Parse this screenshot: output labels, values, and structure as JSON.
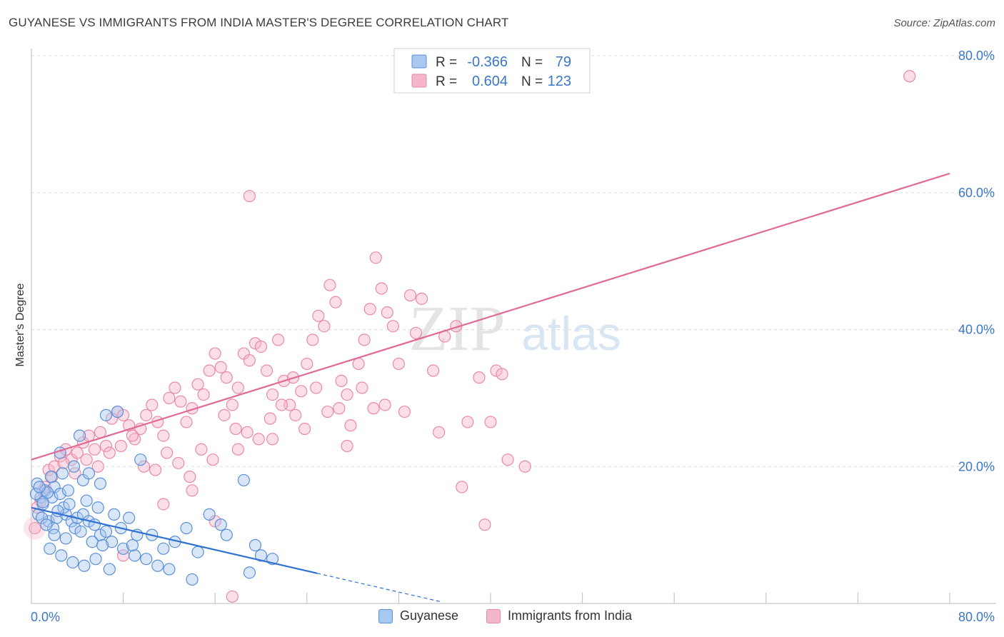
{
  "title": "GUYANESE VS IMMIGRANTS FROM INDIA MASTER'S DEGREE CORRELATION CHART",
  "source": "Source: ZipAtlas.com",
  "watermark": {
    "zip": "ZIP",
    "atlas": "atlas"
  },
  "colors": {
    "blue_fill": "#a8c8f0",
    "blue_stroke": "#5b8fd6",
    "blue_line": "#2f72d0",
    "pink_fill": "#f6b6c9",
    "pink_stroke": "#e88aa8",
    "pink_line": "#e06a95",
    "axis_text": "#3a78c8",
    "grid": "#dddddd"
  },
  "legend": {
    "r_label": "R =",
    "n_label": "N =",
    "series": [
      {
        "name": "Guyanese",
        "r": "-0.366",
        "n": "79"
      },
      {
        "name": "Immigrants from India",
        "r": "0.604",
        "n": "123"
      }
    ]
  },
  "chart_data": {
    "type": "scatter",
    "xlabel": "",
    "ylabel": "Master's Degree",
    "xlim": [
      0,
      80
    ],
    "ylim": [
      0,
      80
    ],
    "x_tick_labels": [
      "0.0%",
      "80.0%"
    ],
    "y_ticks": [
      20,
      40,
      60,
      80
    ],
    "y_tick_labels": [
      "20.0%",
      "40.0%",
      "60.0%",
      "80.0%"
    ],
    "series": [
      {
        "name": "Guyanese",
        "r": -0.366,
        "n": 79,
        "trend": {
          "x0": 0,
          "y0": 14.0,
          "x1": 24.9,
          "y1": 4.4,
          "dash_to_x": 35.6
        },
        "points": [
          [
            0.5,
            17.5
          ],
          [
            0.8,
            15.5
          ],
          [
            1.0,
            14.5
          ],
          [
            1.2,
            16.5
          ],
          [
            0.6,
            13.0
          ],
          [
            1.5,
            12.0
          ],
          [
            2.0,
            17.0
          ],
          [
            1.8,
            15.5
          ],
          [
            2.5,
            16.0
          ],
          [
            2.2,
            12.5
          ],
          [
            1.9,
            11.0
          ],
          [
            3.0,
            13.0
          ],
          [
            3.5,
            12.0
          ],
          [
            3.8,
            11.0
          ],
          [
            4.0,
            12.5
          ],
          [
            4.5,
            13.0
          ],
          [
            5.0,
            12.0
          ],
          [
            5.5,
            11.5
          ],
          [
            2.0,
            10.0
          ],
          [
            3.0,
            9.5
          ],
          [
            6.0,
            10.0
          ],
          [
            6.5,
            10.5
          ],
          [
            7.0,
            9.0
          ],
          [
            8.0,
            8.0
          ],
          [
            9.0,
            7.0
          ],
          [
            10.0,
            6.5
          ],
          [
            4.5,
            18.0
          ],
          [
            5.0,
            19.0
          ],
          [
            6.0,
            17.5
          ],
          [
            2.5,
            22.0
          ],
          [
            4.2,
            24.5
          ],
          [
            6.5,
            27.5
          ],
          [
            7.5,
            28.0
          ],
          [
            9.5,
            21.0
          ],
          [
            11.0,
            5.5
          ],
          [
            12.0,
            5.0
          ],
          [
            14.0,
            3.5
          ],
          [
            15.5,
            13.0
          ],
          [
            16.5,
            11.5
          ],
          [
            17.0,
            10.0
          ],
          [
            18.5,
            18.0
          ],
          [
            19.5,
            8.5
          ],
          [
            20.0,
            7.0
          ],
          [
            21.0,
            6.5
          ],
          [
            1.0,
            14.8
          ],
          [
            1.4,
            16.2
          ],
          [
            2.8,
            14.0
          ],
          [
            3.2,
            16.5
          ],
          [
            4.8,
            15.0
          ],
          [
            5.8,
            14.0
          ],
          [
            7.2,
            13.0
          ],
          [
            8.5,
            12.5
          ],
          [
            1.6,
            8.0
          ],
          [
            2.6,
            7.0
          ],
          [
            3.6,
            6.0
          ],
          [
            4.6,
            5.5
          ],
          [
            5.6,
            6.5
          ],
          [
            6.8,
            5.0
          ],
          [
            8.8,
            8.5
          ],
          [
            10.5,
            10.0
          ],
          [
            12.5,
            9.0
          ],
          [
            13.5,
            11.0
          ],
          [
            14.5,
            7.5
          ],
          [
            0.4,
            16.0
          ],
          [
            0.9,
            12.5
          ],
          [
            1.3,
            11.5
          ],
          [
            2.3,
            13.5
          ],
          [
            3.3,
            14.5
          ],
          [
            4.3,
            10.5
          ],
          [
            5.3,
            9.0
          ],
          [
            6.2,
            8.5
          ],
          [
            7.8,
            11.0
          ],
          [
            9.2,
            10.0
          ],
          [
            11.5,
            8.0
          ],
          [
            0.7,
            17.0
          ],
          [
            1.7,
            18.5
          ],
          [
            2.7,
            19.0
          ],
          [
            3.7,
            20.0
          ],
          [
            19.0,
            4.5
          ]
        ]
      },
      {
        "name": "Immigrants from India",
        "r": 0.604,
        "n": 123,
        "trend": {
          "x0": 0,
          "y0": 21.0,
          "x1": 80,
          "y1": 62.8
        },
        "points": [
          [
            0.3,
            11.0
          ],
          [
            0.8,
            15.0
          ],
          [
            1.2,
            17.0
          ],
          [
            1.5,
            19.5
          ],
          [
            2.0,
            20.0
          ],
          [
            2.5,
            21.5
          ],
          [
            3.0,
            22.5
          ],
          [
            3.5,
            21.0
          ],
          [
            4.0,
            22.0
          ],
          [
            4.5,
            23.5
          ],
          [
            5.0,
            24.5
          ],
          [
            5.5,
            22.5
          ],
          [
            6.0,
            25.0
          ],
          [
            6.5,
            23.0
          ],
          [
            7.0,
            27.0
          ],
          [
            7.5,
            28.0
          ],
          [
            8.0,
            27.5
          ],
          [
            8.5,
            26.0
          ],
          [
            9.0,
            24.0
          ],
          [
            9.5,
            25.5
          ],
          [
            10.0,
            27.5
          ],
          [
            10.5,
            29.0
          ],
          [
            11.0,
            26.5
          ],
          [
            11.5,
            24.5
          ],
          [
            12.0,
            30.0
          ],
          [
            12.5,
            31.5
          ],
          [
            13.0,
            29.5
          ],
          [
            13.5,
            26.5
          ],
          [
            14.0,
            28.5
          ],
          [
            14.5,
            32.0
          ],
          [
            15.0,
            30.5
          ],
          [
            15.5,
            34.0
          ],
          [
            16.0,
            36.5
          ],
          [
            16.5,
            34.5
          ],
          [
            17.0,
            33.0
          ],
          [
            17.5,
            29.0
          ],
          [
            18.0,
            31.5
          ],
          [
            18.5,
            36.5
          ],
          [
            19.0,
            35.5
          ],
          [
            19.5,
            38.0
          ],
          [
            20.0,
            37.5
          ],
          [
            20.5,
            34.0
          ],
          [
            21.0,
            30.5
          ],
          [
            21.5,
            38.5
          ],
          [
            22.0,
            32.5
          ],
          [
            22.5,
            29.0
          ],
          [
            23.0,
            27.5
          ],
          [
            23.5,
            31.0
          ],
          [
            24.0,
            35.0
          ],
          [
            24.5,
            38.5
          ],
          [
            25.0,
            42.0
          ],
          [
            25.5,
            40.5
          ],
          [
            26.0,
            46.5
          ],
          [
            26.5,
            44.0
          ],
          [
            27.0,
            32.5
          ],
          [
            27.5,
            30.5
          ],
          [
            28.5,
            35.0
          ],
          [
            29.0,
            38.5
          ],
          [
            29.5,
            43.0
          ],
          [
            30.0,
            50.5
          ],
          [
            30.5,
            46.0
          ],
          [
            31.0,
            42.5
          ],
          [
            31.5,
            40.5
          ],
          [
            32.0,
            35.0
          ],
          [
            33.0,
            45.0
          ],
          [
            33.5,
            39.5
          ],
          [
            34.0,
            44.5
          ],
          [
            35.0,
            34.0
          ],
          [
            36.0,
            39.0
          ],
          [
            37.0,
            40.5
          ],
          [
            38.0,
            26.5
          ],
          [
            39.0,
            33.0
          ],
          [
            40.0,
            26.5
          ],
          [
            40.5,
            34.0
          ],
          [
            41.0,
            33.5
          ],
          [
            0.5,
            14.0
          ],
          [
            1.0,
            16.5
          ],
          [
            1.8,
            18.5
          ],
          [
            2.8,
            20.5
          ],
          [
            3.8,
            19.0
          ],
          [
            4.8,
            21.0
          ],
          [
            5.8,
            20.0
          ],
          [
            6.8,
            22.0
          ],
          [
            7.8,
            23.0
          ],
          [
            8.8,
            24.5
          ],
          [
            9.8,
            20.0
          ],
          [
            10.8,
            19.5
          ],
          [
            11.8,
            22.0
          ],
          [
            12.8,
            20.5
          ],
          [
            13.8,
            18.5
          ],
          [
            14.8,
            22.5
          ],
          [
            15.8,
            21.0
          ],
          [
            16.8,
            27.5
          ],
          [
            17.8,
            25.5
          ],
          [
            18.8,
            25.0
          ],
          [
            19.8,
            24.0
          ],
          [
            20.8,
            27.0
          ],
          [
            21.8,
            29.0
          ],
          [
            22.8,
            33.0
          ],
          [
            23.8,
            25.5
          ],
          [
            24.8,
            31.5
          ],
          [
            25.8,
            28.0
          ],
          [
            26.8,
            28.5
          ],
          [
            27.8,
            26.0
          ],
          [
            28.8,
            31.5
          ],
          [
            29.8,
            28.5
          ],
          [
            30.8,
            29.0
          ],
          [
            8.0,
            7.0
          ],
          [
            11.5,
            14.5
          ],
          [
            14.0,
            16.5
          ],
          [
            16.0,
            12.0
          ],
          [
            18.0,
            22.5
          ],
          [
            21.0,
            24.0
          ],
          [
            27.5,
            23.0
          ],
          [
            32.5,
            28.0
          ],
          [
            35.5,
            25.0
          ],
          [
            37.5,
            17.0
          ],
          [
            39.5,
            11.5
          ],
          [
            41.5,
            21.0
          ],
          [
            43.0,
            20.0
          ],
          [
            76.5,
            77.0
          ],
          [
            17.5,
            1.0
          ],
          [
            19.0,
            59.5
          ]
        ]
      }
    ]
  }
}
